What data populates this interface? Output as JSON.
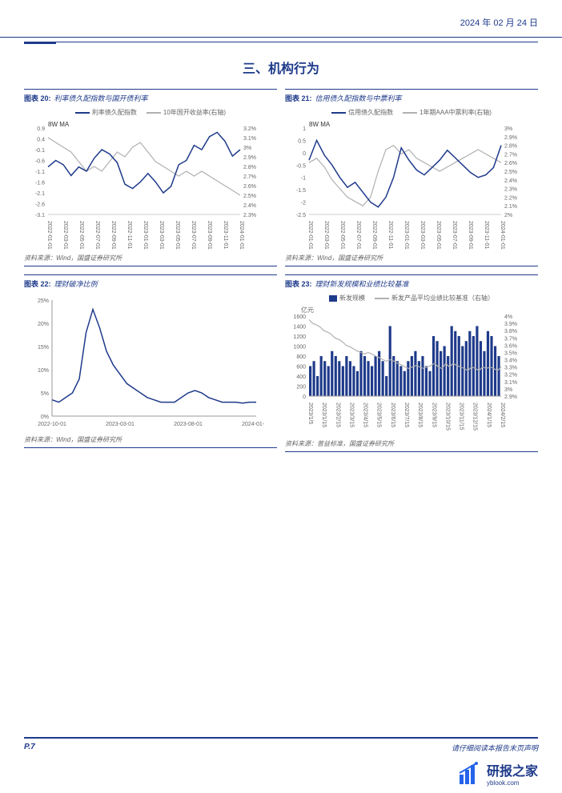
{
  "date": "2024 年 02 月 24 日",
  "section_title": "三、机构行为",
  "source_wind": "资料来源：Wind，国盛证券研究所",
  "source_puyi": "资料来源：普益标准，国盛证券研究所",
  "page_num": "P.7",
  "disclaimer": "请仔细阅读本报告末页声明",
  "watermark_name": "研报之家",
  "watermark_url": "yblook.com",
  "chart20": {
    "prefix": "图表 20:",
    "name": "利率债久配指数与国开债利率",
    "series1_label": "利率债久配指数",
    "series2_label": "10年国开收益率(右轴)",
    "ma_label": "8W MA",
    "y1_ticks": [
      "0.9",
      "0.4",
      "-0.1",
      "-0.6",
      "-1.1",
      "-1.6",
      "-2.1",
      "-2.6",
      "-3.1"
    ],
    "y2_ticks": [
      "3.2%",
      "3.1%",
      "3%",
      "2.9%",
      "2.8%",
      "2.7%",
      "2.6%",
      "2.5%",
      "2.4%",
      "2.3%"
    ],
    "x_ticks": [
      "2022-01-01",
      "2022-03-01",
      "2022-05-01",
      "2022-07-01",
      "2022-09-01",
      "2022-11-01",
      "2023-01-01",
      "2023-03-01",
      "2023-05-01",
      "2023-07-01",
      "2023-09-01",
      "2023-11-01",
      "2024-01-01"
    ],
    "series1_color": "#1e3a8a",
    "series2_color": "#b0b0b0",
    "series1_data": [
      -0.9,
      -0.6,
      -0.8,
      -1.3,
      -0.9,
      -1.1,
      -0.5,
      -0.1,
      -0.3,
      -0.7,
      -1.7,
      -1.9,
      -1.6,
      -1.2,
      -1.6,
      -2.1,
      -1.8,
      -0.8,
      -0.6,
      0.1,
      -0.1,
      0.5,
      0.7,
      0.3,
      -0.4,
      -0.1
    ],
    "series2_data": [
      3.1,
      3.05,
      3.0,
      2.95,
      2.85,
      2.75,
      2.8,
      2.75,
      2.85,
      2.95,
      2.9,
      3.0,
      3.05,
      2.95,
      2.85,
      2.8,
      2.75,
      2.7,
      2.75,
      2.7,
      2.75,
      2.7,
      2.65,
      2.6,
      2.55,
      2.5
    ]
  },
  "chart21": {
    "prefix": "图表 21:",
    "name": "信用债久配指数与中票利率",
    "series1_label": "信用债久配指数",
    "series2_label": "1年期AAA中票利率(右轴)",
    "ma_label": "8W MA",
    "y1_ticks": [
      "1",
      "0.5",
      "0",
      "-0.5",
      "-1",
      "-1.5",
      "-2",
      "-2.5"
    ],
    "y2_ticks": [
      "3%",
      "2.9%",
      "2.8%",
      "2.7%",
      "2.6%",
      "2.5%",
      "2.4%",
      "2.3%",
      "2.2%",
      "2.1%",
      "2%"
    ],
    "x_ticks": [
      "2022-01-01",
      "2022-03-01",
      "2022-05-01",
      "2022-07-01",
      "2022-09-01",
      "2022-11-01",
      "2023-01-01",
      "2023-03-01",
      "2023-05-01",
      "2023-07-01",
      "2023-09-01",
      "2023-11-01",
      "2024-01-01"
    ],
    "series1_color": "#1e3a8a",
    "series2_color": "#b0b0b0",
    "series1_data": [
      -0.3,
      0.5,
      -0.1,
      -0.5,
      -1.0,
      -1.4,
      -1.2,
      -1.6,
      -2.0,
      -2.2,
      -1.8,
      -1.0,
      0.2,
      -0.3,
      -0.7,
      -0.9,
      -0.6,
      -0.3,
      0.1,
      -0.2,
      -0.5,
      -0.8,
      -1.0,
      -0.9,
      -0.6,
      0.3
    ],
    "series2_data": [
      2.6,
      2.65,
      2.55,
      2.4,
      2.3,
      2.2,
      2.15,
      2.1,
      2.2,
      2.5,
      2.75,
      2.8,
      2.7,
      2.75,
      2.65,
      2.6,
      2.55,
      2.5,
      2.55,
      2.6,
      2.65,
      2.7,
      2.75,
      2.7,
      2.65,
      2.6
    ]
  },
  "chart22": {
    "prefix": "图表 22:",
    "name": "理财破净比例",
    "y_ticks": [
      "25%",
      "20%",
      "15%",
      "10%",
      "5%",
      "0%"
    ],
    "x_ticks": [
      "2022-10-01",
      "2023-03-01",
      "2023-08-01",
      "2024-01-01"
    ],
    "series_color": "#1e3a8a",
    "series_data": [
      3.5,
      3,
      4,
      5,
      8,
      18,
      23,
      19,
      14,
      11,
      9,
      7,
      6,
      5,
      4,
      3.5,
      3,
      3,
      3,
      4,
      5,
      5.5,
      5,
      4,
      3.5,
      3,
      3,
      3,
      2.8,
      3,
      3
    ]
  },
  "chart23": {
    "prefix": "图表 23:",
    "name": "理财新发规模和业绩比较基准",
    "series1_label": "新发规模",
    "series2_label": "新发产品平均业绩比较基准（右轴）",
    "y1_label": "亿元",
    "y1_ticks": [
      "1600",
      "1400",
      "1200",
      "1000",
      "800",
      "600",
      "400",
      "200",
      "0"
    ],
    "y2_ticks": [
      "4%",
      "3.9%",
      "3.8%",
      "3.7%",
      "3.6%",
      "3.5%",
      "3.4%",
      "3.3%",
      "3.2%",
      "3.1%",
      "3%",
      "2.9%"
    ],
    "x_ticks": [
      "2023/1/5",
      "2023/1/15",
      "2023/2/15",
      "2023/3/15",
      "2023/4/15",
      "2023/5/15",
      "2023/6/15",
      "2023/7/15",
      "2023/8/15",
      "2023/9/15",
      "2023/10/15",
      "2023/11/15",
      "2023/12/15",
      "2024/1/15",
      "2024/2/15"
    ],
    "bar_color": "#1e3a8a",
    "line_color": "#b0b0b0",
    "bar_data": [
      600,
      700,
      400,
      800,
      700,
      600,
      900,
      800,
      700,
      600,
      800,
      700,
      600,
      500,
      900,
      800,
      700,
      600,
      800,
      900,
      700,
      400,
      1400,
      800,
      700,
      600,
      500,
      700,
      800,
      900,
      700,
      800,
      600,
      500,
      1200,
      1100,
      900,
      1000,
      800,
      1400,
      1300,
      1200,
      1000,
      1100,
      1300,
      1200,
      1400,
      1100,
      900,
      1300,
      1200,
      1000,
      800
    ],
    "line_data": [
      3.95,
      3.9,
      3.88,
      3.85,
      3.8,
      3.78,
      3.75,
      3.7,
      3.68,
      3.65,
      3.6,
      3.58,
      3.55,
      3.52,
      3.5,
      3.48,
      3.5,
      3.48,
      3.45,
      3.43,
      3.4,
      3.38,
      3.4,
      3.38,
      3.35,
      3.33,
      3.3,
      3.28,
      3.3,
      3.32,
      3.3,
      3.28,
      3.3,
      3.32,
      3.35,
      3.3,
      3.28,
      3.35,
      3.3,
      3.35,
      3.32,
      3.3,
      3.28,
      3.25,
      3.3,
      3.28,
      3.25,
      3.3,
      3.28,
      3.3,
      3.28,
      3.25,
      3.3
    ]
  }
}
